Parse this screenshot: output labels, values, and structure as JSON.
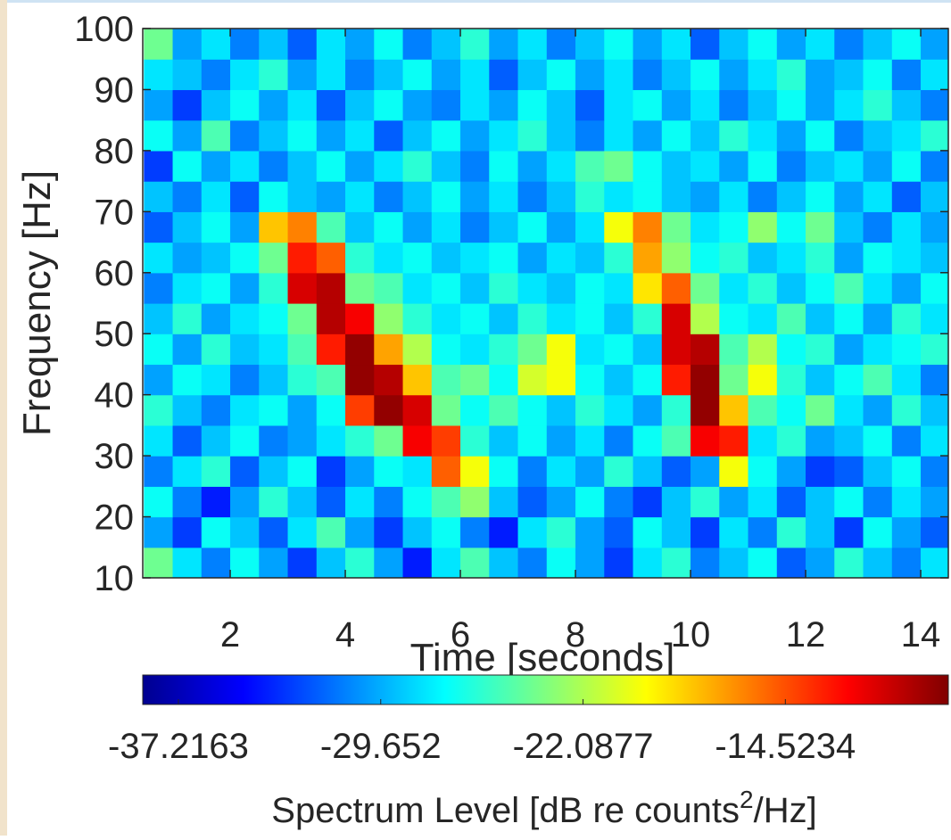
{
  "chart_data": {
    "type": "heatmap",
    "xlabel": "Time [seconds]",
    "ylabel": "Frequency [Hz]",
    "x": [
      0.75,
      1.25,
      1.75,
      2.25,
      2.75,
      3.25,
      3.75,
      4.25,
      4.75,
      5.25,
      5.75,
      6.25,
      6.75,
      7.25,
      7.75,
      8.25,
      8.75,
      9.25,
      9.75,
      10.25,
      10.75,
      11.25,
      11.75,
      12.25,
      12.75,
      13.25,
      13.75,
      14.25
    ],
    "y": [
      12.5,
      17.5,
      22.5,
      27.5,
      32.5,
      37.5,
      42.5,
      47.5,
      52.5,
      57.5,
      62.5,
      67.5,
      72.5,
      77.5,
      82.5,
      87.5,
      92.5,
      97.5
    ],
    "z": [
      [
        -24,
        -28,
        -31,
        -27,
        -30,
        -33,
        -29,
        -26,
        -30,
        -34,
        -28,
        -25,
        -29,
        -31,
        -27,
        -30,
        -33,
        -28,
        -26,
        -31,
        -29,
        -27,
        -32,
        -30,
        -26,
        -29,
        -31,
        -28
      ],
      [
        -30,
        -33,
        -27,
        -29,
        -32,
        -28,
        -25,
        -30,
        -33,
        -29,
        -27,
        -31,
        -34,
        -28,
        -26,
        -30,
        -32,
        -27,
        -29,
        -33,
        -28,
        -31,
        -26,
        -29,
        -33,
        -27,
        -30,
        -32
      ],
      [
        -27,
        -31,
        -34,
        -30,
        -26,
        -29,
        -32,
        -28,
        -31,
        -27,
        -25,
        -23,
        -29,
        -32,
        -30,
        -27,
        -31,
        -33,
        -29,
        -26,
        -30,
        -28,
        -32,
        -29,
        -27,
        -31,
        -28,
        -30
      ],
      [
        -31,
        -28,
        -26,
        -32,
        -29,
        -27,
        -33,
        -30,
        -27,
        -28,
        -15,
        -20,
        -27,
        -31,
        -28,
        -30,
        -26,
        -29,
        -32,
        -30,
        -20,
        -27,
        -30,
        -33,
        -32,
        -29,
        -27,
        -31
      ],
      [
        -28,
        -32,
        -29,
        -27,
        -31,
        -30,
        -28,
        -26,
        -24,
        -12,
        -14,
        -26,
        -29,
        -27,
        -30,
        -28,
        -31,
        -27,
        -25,
        -12,
        -13,
        -28,
        -26,
        -30,
        -29,
        -27,
        -31,
        -28
      ],
      [
        -26,
        -29,
        -31,
        -28,
        -27,
        -30,
        -27,
        -14,
        -9,
        -11,
        -24,
        -27,
        -25,
        -27,
        -29,
        -26,
        -28,
        -30,
        -26,
        -9,
        -18,
        -25,
        -27,
        -24,
        -28,
        -30,
        -26,
        -29
      ],
      [
        -30,
        -27,
        -28,
        -31,
        -29,
        -26,
        -25,
        -9,
        -10,
        -18,
        -25,
        -24,
        -27,
        -21,
        -20,
        -27,
        -29,
        -27,
        -13,
        -9,
        -24,
        -20,
        -26,
        -29,
        -27,
        -25,
        -28,
        -31
      ],
      [
        -27,
        -30,
        -26,
        -29,
        -28,
        -25,
        -13,
        -9,
        -17,
        -22,
        -27,
        -28,
        -26,
        -24,
        -20,
        -28,
        -27,
        -29,
        -11,
        -10,
        -25,
        -22,
        -27,
        -26,
        -30,
        -28,
        -27,
        -26
      ],
      [
        -29,
        -26,
        -30,
        -28,
        -27,
        -24,
        -10,
        -12,
        -23,
        -26,
        -28,
        -27,
        -29,
        -26,
        -28,
        -27,
        -29,
        -26,
        -11,
        -22,
        -27,
        -28,
        -25,
        -29,
        -27,
        -30,
        -26,
        -28
      ],
      [
        -31,
        -28,
        -27,
        -30,
        -26,
        -11,
        -10,
        -24,
        -25,
        -28,
        -27,
        -29,
        -26,
        -28,
        -29,
        -27,
        -28,
        -19,
        -15,
        -24,
        -28,
        -26,
        -29,
        -27,
        -25,
        -28,
        -30,
        -27
      ],
      [
        -28,
        -30,
        -29,
        -27,
        -24,
        -13,
        -15,
        -26,
        -28,
        -27,
        -29,
        -28,
        -27,
        -30,
        -28,
        -29,
        -26,
        -17,
        -23,
        -27,
        -26,
        -29,
        -28,
        -26,
        -30,
        -27,
        -28,
        -29
      ],
      [
        -32,
        -29,
        -27,
        -30,
        -18,
        -16,
        -25,
        -29,
        -27,
        -30,
        -28,
        -31,
        -29,
        -27,
        -30,
        -28,
        -20,
        -16,
        -24,
        -28,
        -27,
        -23,
        -27,
        -24,
        -29,
        -31,
        -28,
        -30
      ],
      [
        -29,
        -31,
        -28,
        -32,
        -27,
        -29,
        -30,
        -28,
        -31,
        -29,
        -27,
        -30,
        -28,
        -31,
        -29,
        -26,
        -28,
        -27,
        -29,
        -30,
        -28,
        -31,
        -29,
        -27,
        -30,
        -28,
        -32,
        -29
      ],
      [
        -33,
        -27,
        -30,
        -28,
        -31,
        -29,
        -27,
        -30,
        -28,
        -26,
        -29,
        -31,
        -27,
        -30,
        -28,
        -25,
        -24,
        -27,
        -29,
        -28,
        -30,
        -27,
        -31,
        -29,
        -28,
        -30,
        -27,
        -31
      ],
      [
        -27,
        -30,
        -25,
        -31,
        -29,
        -27,
        -30,
        -28,
        -32,
        -29,
        -27,
        -30,
        -28,
        -26,
        -29,
        -31,
        -28,
        -30,
        -27,
        -29,
        -26,
        -28,
        -30,
        -27,
        -31,
        -29,
        -28,
        -26
      ],
      [
        -30,
        -33,
        -29,
        -27,
        -30,
        -28,
        -32,
        -29,
        -27,
        -30,
        -31,
        -28,
        -30,
        -27,
        -29,
        -32,
        -28,
        -27,
        -30,
        -28,
        -31,
        -29,
        -27,
        -30,
        -28,
        -26,
        -29,
        -31
      ],
      [
        -28,
        -29,
        -31,
        -28,
        -26,
        -30,
        -28,
        -31,
        -29,
        -27,
        -30,
        -28,
        -32,
        -29,
        -27,
        -30,
        -28,
        -31,
        -29,
        -27,
        -30,
        -28,
        -26,
        -30,
        -29,
        -27,
        -31,
        -28
      ],
      [
        -24,
        -30,
        -28,
        -31,
        -29,
        -32,
        -28,
        -30,
        -27,
        -31,
        -29,
        -26,
        -30,
        -28,
        -31,
        -29,
        -27,
        -30,
        -28,
        -32,
        -29,
        -27,
        -30,
        -28,
        -31,
        -29,
        -27,
        -30
      ]
    ],
    "xlim": [
      0.48,
      14.48
    ],
    "xticks": [
      2,
      4,
      6,
      8,
      10,
      12,
      14
    ],
    "ylim": [
      10,
      100
    ],
    "yticks": [
      10,
      20,
      30,
      40,
      50,
      60,
      70,
      80,
      90,
      100
    ],
    "colormap": "jet",
    "clim": [
      -38.55,
      -8.43
    ],
    "cticks": [
      -37.2163,
      -29.652,
      -22.0877,
      -14.5234
    ],
    "colorbar_label": [
      "Spectrum Level [dB re counts",
      "2",
      "/Hz]"
    ]
  }
}
